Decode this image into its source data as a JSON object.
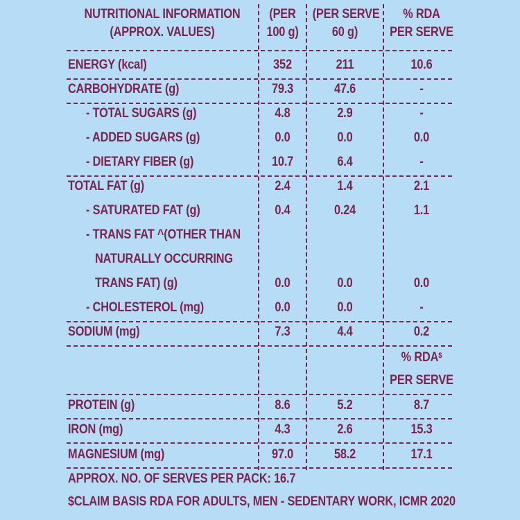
{
  "header": {
    "col1_line1": "NUTRITIONAL INFORMATION",
    "col1_line2": "(APPROX. VALUES)",
    "col2_line1": "(PER",
    "col2_line2": "100 g)",
    "col3_line1": "(PER SERVE",
    "col3_line2": "60 g)",
    "col4_line1": "% RDA",
    "col4_line2": "PER SERVE"
  },
  "rows": [
    {
      "label": "ENERGY (kcal)",
      "per100": "352",
      "perServe": "211",
      "rda": "10.6"
    },
    {
      "label": "CARBOHYDRATE (g)",
      "per100": "79.3",
      "perServe": "47.6",
      "rda": "-"
    },
    {
      "label": "- TOTAL SUGARS (g)",
      "per100": "4.8",
      "perServe": "2.9",
      "rda": "-"
    },
    {
      "label": "- ADDED SUGARS (g)",
      "per100": "0.0",
      "perServe": "0.0",
      "rda": "0.0"
    },
    {
      "label": "- DIETARY FIBER (g)",
      "per100": "10.7",
      "perServe": "6.4",
      "rda": "-"
    },
    {
      "label": "TOTAL FAT (g)",
      "per100": "2.4",
      "perServe": "1.4",
      "rda": "2.1"
    },
    {
      "label": "- SATURATED FAT (g)",
      "per100": "0.4",
      "perServe": "0.24",
      "rda": "1.1"
    },
    {
      "label": "- TRANS FAT ^(OTHER THAN",
      "per100": "",
      "perServe": "",
      "rda": ""
    },
    {
      "label": "NATURALLY OCCURRING",
      "per100": "",
      "perServe": "",
      "rda": ""
    },
    {
      "label": "TRANS FAT) (g)",
      "per100": "0.0",
      "perServe": "0.0",
      "rda": "0.0"
    },
    {
      "label": "- CHOLESTEROL (mg)",
      "per100": "0.0",
      "perServe": "0.0",
      "rda": "-"
    },
    {
      "label": "SODIUM (mg)",
      "per100": "7.3",
      "perServe": "4.4",
      "rda": "0.2"
    }
  ],
  "rda2": {
    "line1": "% RDA",
    "sup": "$",
    "line2": "PER SERVE"
  },
  "rows2": [
    {
      "label": "PROTEIN (g)",
      "per100": "8.6",
      "perServe": "5.2",
      "rda": "8.7"
    },
    {
      "label": "IRON (mg)",
      "per100": "4.3",
      "perServe": "2.6",
      "rda": "15.3"
    },
    {
      "label": "MAGNESIUM (mg)",
      "per100": "97.0",
      "perServe": "58.2",
      "rda": "17.1"
    }
  ],
  "footer": {
    "serves": "APPROX. NO. OF SERVES PER PACK: 16.7",
    "claim": "$CLAIM BASIS RDA FOR ADULTS, MEN - SEDENTARY WORK, ICMR 2020"
  }
}
